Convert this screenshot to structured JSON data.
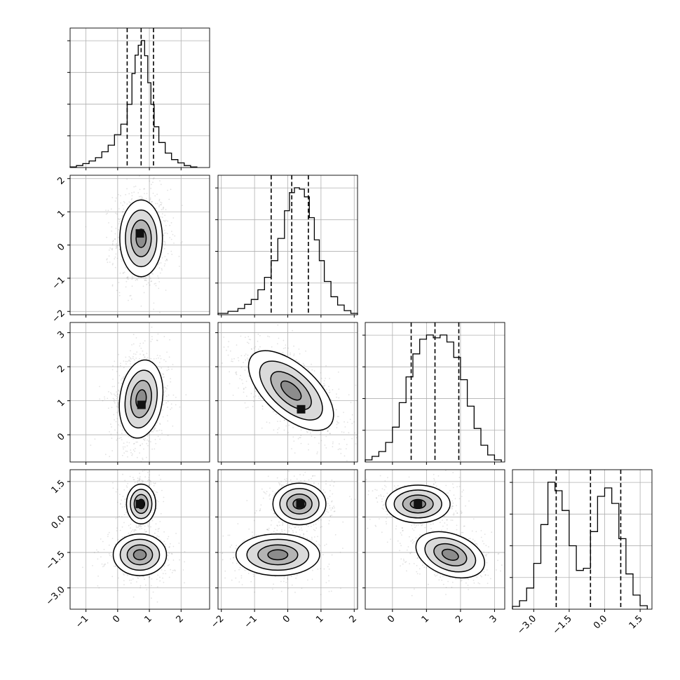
{
  "chart_data": {
    "type": "corner",
    "grid": true,
    "parameters": [
      {
        "index": 0,
        "range": [
          -1.5,
          2.9
        ],
        "ticks": [
          -1,
          0,
          1,
          2
        ],
        "tick_labels": [
          "−1",
          "0",
          "1",
          "2"
        ],
        "quantiles": [
          0.3,
          0.74,
          1.13
        ],
        "histogram": {
          "bin_edges": [
            -1.5,
            -1.3,
            -1.1,
            -0.9,
            -0.7,
            -0.5,
            -0.3,
            -0.1,
            0.1,
            0.3,
            0.45,
            0.55,
            0.65,
            0.75,
            0.85,
            0.95,
            1.05,
            1.15,
            1.3,
            1.5,
            1.7,
            1.9,
            2.1,
            2.3,
            2.5
          ],
          "counts": [
            1,
            3,
            6,
            10,
            15,
            24,
            34,
            50,
            66,
            96,
            143,
            171,
            186,
            193,
            170,
            129,
            96,
            62,
            38,
            22,
            12,
            7,
            3,
            1
          ]
        }
      },
      {
        "index": 1,
        "range": [
          -2.1,
          2.1
        ],
        "ticks": [
          -2,
          -1,
          0,
          1,
          2
        ],
        "tick_labels": [
          "−2",
          "−1",
          "0",
          "1",
          "2"
        ],
        "quantiles": [
          -0.5,
          0.12,
          0.62
        ],
        "histogram": {
          "bin_edges": [
            -2.1,
            -1.8,
            -1.5,
            -1.3,
            -1.1,
            -0.9,
            -0.7,
            -0.5,
            -0.3,
            -0.1,
            0.05,
            0.2,
            0.35,
            0.5,
            0.65,
            0.8,
            0.95,
            1.1,
            1.3,
            1.5,
            1.7,
            1.9,
            2.1
          ],
          "counts": [
            2,
            5,
            9,
            15,
            22,
            36,
            54,
            78,
            110,
            150,
            176,
            183,
            181,
            170,
            140,
            108,
            78,
            48,
            26,
            14,
            6,
            2
          ]
        }
      },
      {
        "index": 2,
        "range": [
          -0.8,
          3.3
        ],
        "ticks": [
          0,
          1,
          2,
          3
        ],
        "tick_labels": [
          "0",
          "1",
          "2",
          "3"
        ],
        "quantiles": [
          0.55,
          1.25,
          1.95
        ],
        "histogram": {
          "bin_edges": [
            -0.8,
            -0.6,
            -0.4,
            -0.2,
            0,
            0.2,
            0.4,
            0.6,
            0.8,
            1.0,
            1.2,
            1.4,
            1.6,
            1.8,
            2.0,
            2.2,
            2.4,
            2.6,
            2.8,
            3.0,
            3.2
          ],
          "counts": [
            3,
            8,
            15,
            28,
            50,
            85,
            122,
            155,
            176,
            182,
            178,
            182,
            172,
            150,
            118,
            80,
            48,
            24,
            10,
            3
          ]
        }
      },
      {
        "index": 3,
        "range": [
          -3.9,
          2.0
        ],
        "ticks": [
          -3.0,
          -1.5,
          0.0,
          1.5
        ],
        "tick_labels": [
          "−3.0",
          "−1.5",
          "0.0",
          "1.5"
        ],
        "quantiles": [
          -2.05,
          -0.6,
          0.68
        ],
        "histogram": {
          "bin_edges": [
            -3.9,
            -3.6,
            -3.3,
            -3.0,
            -2.7,
            -2.4,
            -2.1,
            -1.8,
            -1.5,
            -1.2,
            -0.9,
            -0.6,
            -0.3,
            0.0,
            0.3,
            0.6,
            0.9,
            1.2,
            1.5,
            1.8
          ],
          "counts": [
            4,
            12,
            30,
            65,
            120,
            180,
            168,
            140,
            90,
            55,
            58,
            110,
            160,
            172,
            150,
            100,
            50,
            20,
            5
          ]
        }
      }
    ],
    "pairs": [
      {
        "x": 0,
        "y": 1,
        "centers": [
          [
            0.74,
            0.2
          ]
        ],
        "sigmas": [
          [
            0.32,
            0.55
          ]
        ],
        "tilt_deg": [
          0
        ],
        "peak": [
          0.7,
          0.35
        ]
      },
      {
        "x": 0,
        "y": 2,
        "centers": [
          [
            0.74,
            1.05
          ]
        ],
        "sigmas": [
          [
            0.32,
            0.55
          ]
        ],
        "tilt_deg": [
          -8
        ],
        "peak": [
          0.75,
          0.88
        ]
      },
      {
        "x": 1,
        "y": 2,
        "centers": [
          [
            0.1,
            1.3
          ]
        ],
        "sigmas": [
          [
            0.75,
            0.36
          ]
        ],
        "tilt_deg": [
          -42
        ],
        "peak": [
          0.4,
          0.75
        ]
      },
      {
        "x": 0,
        "y": 3,
        "centers": [
          [
            0.74,
            0.55
          ],
          [
            0.7,
            -1.6
          ]
        ],
        "sigmas": [
          [
            0.22,
            0.4
          ],
          [
            0.4,
            0.42
          ]
        ],
        "tilt_deg": [
          0,
          0
        ],
        "peak": [
          0.7,
          0.55
        ]
      },
      {
        "x": 1,
        "y": 3,
        "centers": [
          [
            0.35,
            0.55
          ],
          [
            -0.3,
            -1.6
          ]
        ],
        "sigmas": [
          [
            0.38,
            0.42
          ],
          [
            0.6,
            0.42
          ]
        ],
        "tilt_deg": [
          0,
          0
        ],
        "peak": [
          0.38,
          0.55
        ]
      },
      {
        "x": 2,
        "y": 3,
        "centers": [
          [
            0.75,
            0.55
          ],
          [
            1.7,
            -1.6
          ]
        ],
        "sigmas": [
          [
            0.45,
            0.38
          ],
          [
            0.5,
            0.42
          ]
        ],
        "tilt_deg": [
          0,
          -20
        ],
        "peak": [
          0.75,
          0.55
        ]
      }
    ]
  }
}
